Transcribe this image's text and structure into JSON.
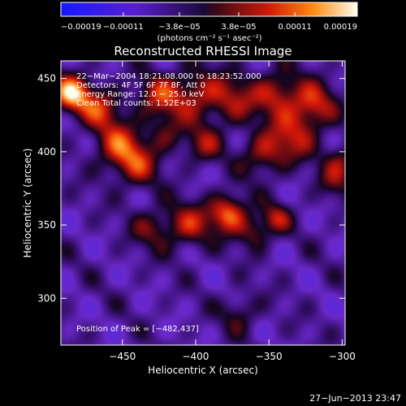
{
  "chart_data": {
    "type": "heatmap",
    "title": "Reconstructed RHESSI Image",
    "xlabel": "Heliocentric X (arcsec)",
    "ylabel": "Heliocentric Y (arcsec)",
    "xlim": [
      -492,
      -298
    ],
    "ylim": [
      268,
      462
    ],
    "xticks": [
      -450,
      -400,
      -350,
      -300
    ],
    "yticks": [
      300,
      350,
      400,
      450
    ],
    "xtick_labels": [
      "−450",
      "−400",
      "−350",
      "−300"
    ],
    "ytick_labels": [
      "300",
      "350",
      "400",
      "450"
    ],
    "colorbar": {
      "range": [
        -0.00019,
        0.00019
      ],
      "ticks": [
        -0.00019,
        -0.00011,
        -3.8e-05,
        3.8e-05,
        0.00011,
        0.00019
      ],
      "tick_labels": [
        "−0.00019",
        "−0.00011",
        "−3.8e−05",
        "3.8e−05",
        "0.00011",
        "0.00019"
      ],
      "unit_label": "(photons cm⁻² s⁻¹ asec⁻²)"
    },
    "annotations": [
      "22−Mar−2004 18:21:08.000 to 18:23:52.000",
      "Detectors: 4F 5F 6F 7F 8F, Att 0",
      "Energy Range: 12.0 − 25.0 keV",
      "Clean    Total counts: 1.52E+03"
    ],
    "peak_label": "Position of Peak = [−482,437]",
    "footer": "27−Jun−2013 23:47",
    "sources": [
      {
        "x": -485,
        "y": 440,
        "amp": 1.0,
        "sigma": 9
      },
      {
        "x": -465,
        "y": 430,
        "amp": 0.6,
        "sigma": 10
      },
      {
        "x": -452,
        "y": 404,
        "amp": 0.65,
        "sigma": 12
      },
      {
        "x": -440,
        "y": 390,
        "amp": 0.45,
        "sigma": 11
      },
      {
        "x": -425,
        "y": 438,
        "amp": 0.55,
        "sigma": 11
      },
      {
        "x": -400,
        "y": 440,
        "amp": 0.55,
        "sigma": 12
      },
      {
        "x": -375,
        "y": 435,
        "amp": 0.5,
        "sigma": 12
      },
      {
        "x": -345,
        "y": 440,
        "amp": 0.6,
        "sigma": 11
      },
      {
        "x": -320,
        "y": 432,
        "amp": 0.65,
        "sigma": 11
      },
      {
        "x": -335,
        "y": 410,
        "amp": 0.55,
        "sigma": 12
      },
      {
        "x": -355,
        "y": 398,
        "amp": 0.5,
        "sigma": 10
      },
      {
        "x": -395,
        "y": 405,
        "amp": 0.45,
        "sigma": 9
      },
      {
        "x": -420,
        "y": 412,
        "amp": 0.35,
        "sigma": 9
      },
      {
        "x": -378,
        "y": 358,
        "amp": 0.85,
        "sigma": 9
      },
      {
        "x": -405,
        "y": 350,
        "amp": 0.55,
        "sigma": 11
      },
      {
        "x": -430,
        "y": 348,
        "amp": 0.4,
        "sigma": 10
      },
      {
        "x": -360,
        "y": 345,
        "amp": 0.45,
        "sigma": 8
      },
      {
        "x": -345,
        "y": 355,
        "amp": 0.5,
        "sigma": 7
      },
      {
        "x": -305,
        "y": 380,
        "amp": 0.35,
        "sigma": 9
      },
      {
        "x": -370,
        "y": 290,
        "amp": 0.35,
        "sigma": 9
      },
      {
        "x": -300,
        "y": 395,
        "amp": 0.4,
        "sigma": 8
      }
    ]
  }
}
